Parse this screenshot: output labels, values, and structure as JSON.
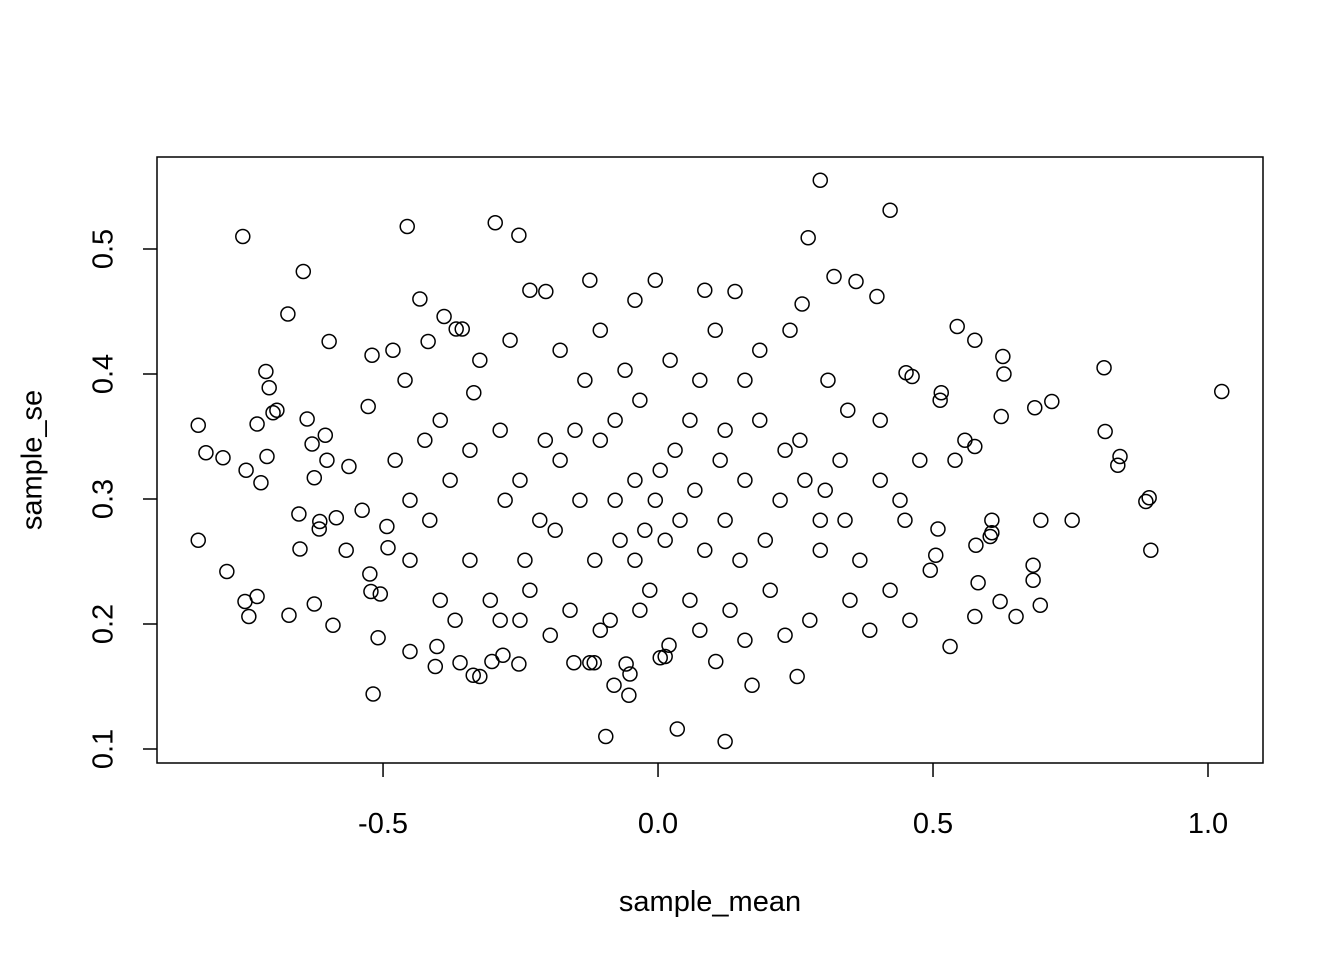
{
  "chart_data": {
    "type": "scatter",
    "x_label": "sample_mean",
    "y_label": "sample_se",
    "xlim": [
      -0.911,
      1.1
    ],
    "ylim": [
      0.0888,
      0.5736
    ],
    "xticks": [
      -0.5,
      {
        "value": 0,
        "label": "0.0"
      },
      0.5,
      {
        "value": 1,
        "label": "1.0"
      }
    ],
    "yticks": [
      0.1,
      0.2,
      0.3,
      0.4,
      0.5
    ],
    "color": "#000000",
    "marker": "open-circle",
    "x": [
      1.025,
      0.811,
      0.813,
      0.84,
      0.836,
      0.893,
      0.887,
      0.896,
      0.753,
      0.716,
      0.696,
      0.685,
      0.682,
      0.682,
      0.695,
      0.651,
      0.627,
      0.629,
      0.624,
      0.622,
      0.607,
      0.607,
      0.604,
      0.576,
      0.576,
      0.544,
      0.578,
      0.582,
      0.576,
      0.531,
      0.515,
      0.513,
      0.505,
      0.509,
      0.462,
      0.451,
      0.422,
      0.398,
      0.36,
      0.32,
      0.295,
      0.295,
      0.273,
      0.262,
      0.253,
      0.171,
      0.122,
      0.105,
      0.035,
      0.02,
      0.013,
      0.004,
      -0.095,
      -0.08,
      -0.051,
      -0.053,
      -0.058,
      -0.124,
      -0.116,
      -0.153,
      -0.253,
      -0.282,
      -0.302,
      -0.324,
      -0.336,
      -0.36,
      -0.405,
      -0.402,
      -0.518,
      -0.509,
      -0.296,
      -0.253,
      -0.456,
      -0.755,
      -0.645,
      -0.673,
      -0.598,
      -0.836,
      -0.822,
      -0.791,
      -0.836,
      -0.784,
      -0.749,
      -0.729,
      -0.722,
      -0.711,
      -0.713,
      -0.707,
      -0.7,
      -0.693,
      -0.751,
      -0.744,
      -0.729,
      -0.671,
      -0.651,
      -0.653,
      -0.638,
      -0.629,
      -0.625,
      -0.625,
      -0.615,
      -0.616,
      -0.605,
      -0.602,
      -0.591,
      -0.585,
      -0.567,
      -0.562,
      -0.538,
      -0.527,
      -0.52,
      -0.524,
      -0.522,
      -0.505,
      -0.493,
      -0.491,
      -0.482,
      -0.46,
      -0.451,
      -0.433,
      -0.418,
      -0.389,
      -0.367,
      -0.356,
      -0.335,
      -0.287,
      -0.251,
      -0.215,
      -0.178,
      -0.142,
      -0.105,
      -0.069,
      -0.033,
      0.004,
      0.04,
      0.076,
      0.113,
      0.149,
      0.185,
      0.222,
      0.258,
      0.295,
      0.331,
      0.367,
      0.404,
      0.44,
      0.476,
      -0.378,
      -0.415,
      -0.451,
      -0.342,
      -0.305,
      -0.233,
      -0.16,
      -0.087,
      -0.015,
      0.058,
      0.131,
      0.204,
      0.276,
      0.349,
      0.422,
      -0.178,
      -0.105,
      -0.042,
      -0.005,
      0.085,
      0.14,
      0.185,
      0.24,
      -0.233,
      -0.204,
      -0.269,
      -0.324,
      -0.124,
      -0.133,
      -0.06,
      0.022,
      0.104,
      0.158,
      0.309,
      0.345,
      -0.205,
      -0.151,
      -0.078,
      -0.042,
      -0.024,
      0.013,
      0.031,
      0.067,
      0.085,
      0.122,
      0.158,
      0.195,
      0.231,
      0.267,
      0.304,
      0.34,
      -0.278,
      -0.242,
      -0.187,
      -0.115,
      -0.042,
      -0.005,
      -0.078,
      0.058,
      0.122,
      -0.342,
      -0.396,
      -0.424,
      -0.478,
      -0.451,
      -0.396,
      -0.369,
      0.385,
      0.458,
      0.495,
      0.404,
      0.449,
      0.54,
      0.558,
      0.231,
      0.158,
      0.076,
      -0.033,
      -0.105,
      -0.196,
      -0.287,
      -0.251
    ],
    "values": [
      0.386,
      0.405,
      0.354,
      0.334,
      0.327,
      0.301,
      0.298,
      0.259,
      0.283,
      0.378,
      0.283,
      0.373,
      0.247,
      0.235,
      0.215,
      0.206,
      0.414,
      0.4,
      0.366,
      0.218,
      0.283,
      0.273,
      0.27,
      0.342,
      0.427,
      0.438,
      0.263,
      0.233,
      0.206,
      0.182,
      0.385,
      0.379,
      0.255,
      0.276,
      0.398,
      0.401,
      0.531,
      0.462,
      0.474,
      0.478,
      0.259,
      0.555,
      0.509,
      0.456,
      0.158,
      0.151,
      0.106,
      0.17,
      0.116,
      0.183,
      0.174,
      0.173,
      0.11,
      0.151,
      0.16,
      0.143,
      0.168,
      0.169,
      0.169,
      0.169,
      0.168,
      0.175,
      0.17,
      0.158,
      0.159,
      0.169,
      0.166,
      0.182,
      0.144,
      0.189,
      0.521,
      0.511,
      0.518,
      0.51,
      0.482,
      0.448,
      0.426,
      0.359,
      0.337,
      0.333,
      0.267,
      0.242,
      0.323,
      0.36,
      0.313,
      0.334,
      0.402,
      0.389,
      0.369,
      0.371,
      0.218,
      0.206,
      0.222,
      0.207,
      0.26,
      0.288,
      0.364,
      0.344,
      0.317,
      0.216,
      0.282,
      0.276,
      0.351,
      0.331,
      0.199,
      0.285,
      0.259,
      0.326,
      0.291,
      0.374,
      0.415,
      0.24,
      0.226,
      0.224,
      0.278,
      0.261,
      0.419,
      0.395,
      0.178,
      0.46,
      0.426,
      0.446,
      0.436,
      0.436,
      0.385,
      0.355,
      0.315,
      0.283,
      0.331,
      0.299,
      0.347,
      0.267,
      0.379,
      0.323,
      0.283,
      0.395,
      0.331,
      0.251,
      0.363,
      0.299,
      0.347,
      0.283,
      0.331,
      0.251,
      0.363,
      0.299,
      0.331,
      0.315,
      0.283,
      0.251,
      0.251,
      0.219,
      0.227,
      0.211,
      0.203,
      0.227,
      0.219,
      0.211,
      0.227,
      0.203,
      0.219,
      0.227,
      0.419,
      0.435,
      0.459,
      0.475,
      0.467,
      0.466,
      0.419,
      0.435,
      0.467,
      0.466,
      0.427,
      0.411,
      0.475,
      0.395,
      0.403,
      0.411,
      0.435,
      0.395,
      0.395,
      0.371,
      0.347,
      0.355,
      0.299,
      0.315,
      0.275,
      0.267,
      0.339,
      0.307,
      0.259,
      0.283,
      0.315,
      0.267,
      0.339,
      0.315,
      0.307,
      0.283,
      0.299,
      0.251,
      0.275,
      0.251,
      0.251,
      0.299,
      0.363,
      0.363,
      0.355,
      0.339,
      0.363,
      0.347,
      0.331,
      0.299,
      0.219,
      0.203,
      0.195,
      0.203,
      0.243,
      0.315,
      0.283,
      0.331,
      0.347,
      0.191,
      0.187,
      0.195,
      0.211,
      0.195,
      0.191,
      0.203,
      0.203
    ]
  }
}
